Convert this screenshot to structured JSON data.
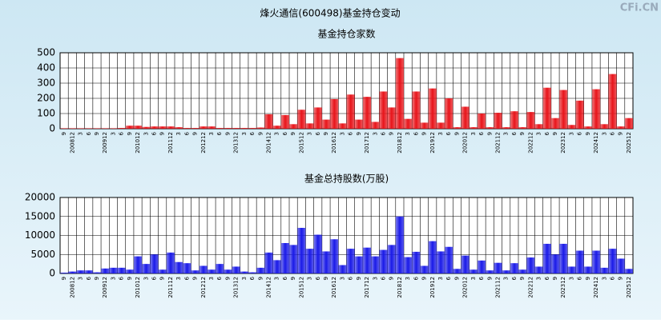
{
  "header": {
    "title": "烽火通信(600498)基金持仓变动",
    "watermark": "CFi.CN"
  },
  "chart_data": [
    {
      "type": "bar",
      "title": "基金持仓家数",
      "color": "#e8141a",
      "categories": [
        "9",
        "200812",
        "3",
        "6",
        "9",
        "200912",
        "3",
        "6",
        "9",
        "201012",
        "3",
        "6",
        "9",
        "201112",
        "3",
        "6",
        "9",
        "201212",
        "3",
        "6",
        "9",
        "201312",
        "3",
        "6",
        "9",
        "201412",
        "3",
        "6",
        "9",
        "201512",
        "3",
        "6",
        "9",
        "201612",
        "3",
        "6",
        "9",
        "201712",
        "3",
        "6",
        "9",
        "201812",
        "3",
        "6",
        "9",
        "201912",
        "3",
        "6",
        "9",
        "202012",
        "3",
        "6",
        "9",
        "202112",
        "3",
        "6",
        "9",
        "202212",
        "3",
        "6",
        "9",
        "202312",
        "3",
        "6",
        "9",
        "202412",
        "3",
        "6",
        "9",
        "202512"
      ],
      "values": [
        3,
        3,
        3,
        3,
        3,
        3,
        3,
        5,
        20,
        20,
        12,
        15,
        15,
        15,
        10,
        5,
        5,
        15,
        15,
        5,
        5,
        5,
        5,
        5,
        8,
        95,
        20,
        90,
        30,
        125,
        35,
        140,
        60,
        195,
        35,
        225,
        60,
        210,
        45,
        245,
        140,
        465,
        65,
        245,
        40,
        265,
        40,
        200,
        10,
        145,
        10,
        100,
        10,
        105,
        10,
        115,
        10,
        110,
        30,
        270,
        70,
        255,
        25,
        185,
        15,
        260,
        30,
        360,
        15,
        70
      ],
      "ylim": [
        0,
        500
      ],
      "yticks": [
        0,
        100,
        200,
        300,
        400,
        500
      ],
      "grid": true
    },
    {
      "type": "bar",
      "title": "基金总持股数(万股)",
      "color": "#1a1ae8",
      "categories": [
        "9",
        "200812",
        "3",
        "6",
        "9",
        "200912",
        "3",
        "6",
        "9",
        "201012",
        "3",
        "6",
        "9",
        "201112",
        "3",
        "6",
        "9",
        "201212",
        "3",
        "6",
        "9",
        "201312",
        "3",
        "6",
        "9",
        "201412",
        "3",
        "6",
        "9",
        "201512",
        "3",
        "6",
        "9",
        "201612",
        "3",
        "6",
        "9",
        "201712",
        "3",
        "6",
        "9",
        "201812",
        "3",
        "6",
        "9",
        "201912",
        "3",
        "6",
        "9",
        "202012",
        "3",
        "6",
        "9",
        "202112",
        "3",
        "6",
        "9",
        "202212",
        "3",
        "6",
        "9",
        "202312",
        "3",
        "6",
        "9",
        "202412",
        "3",
        "6",
        "9",
        "202512"
      ],
      "values": [
        200,
        500,
        800,
        800,
        300,
        1300,
        1500,
        1500,
        1000,
        4500,
        2500,
        5000,
        1000,
        5500,
        3000,
        2700,
        800,
        2000,
        1000,
        2500,
        1000,
        1800,
        500,
        300,
        1500,
        5500,
        3500,
        8000,
        7500,
        12000,
        6500,
        10200,
        5800,
        9000,
        2200,
        6500,
        4500,
        6800,
        4500,
        6200,
        7500,
        15000,
        4300,
        5700,
        2000,
        8500,
        5800,
        7000,
        1200,
        4700,
        1000,
        3400,
        800,
        2800,
        800,
        2700,
        1000,
        4200,
        1800,
        7800,
        5000,
        7800,
        1800,
        6000,
        1800,
        6000,
        1500,
        6500,
        3900,
        1200
      ],
      "ylim": [
        0,
        20000
      ],
      "yticks": [
        0,
        5000,
        10000,
        15000,
        20000
      ],
      "grid": true
    }
  ]
}
